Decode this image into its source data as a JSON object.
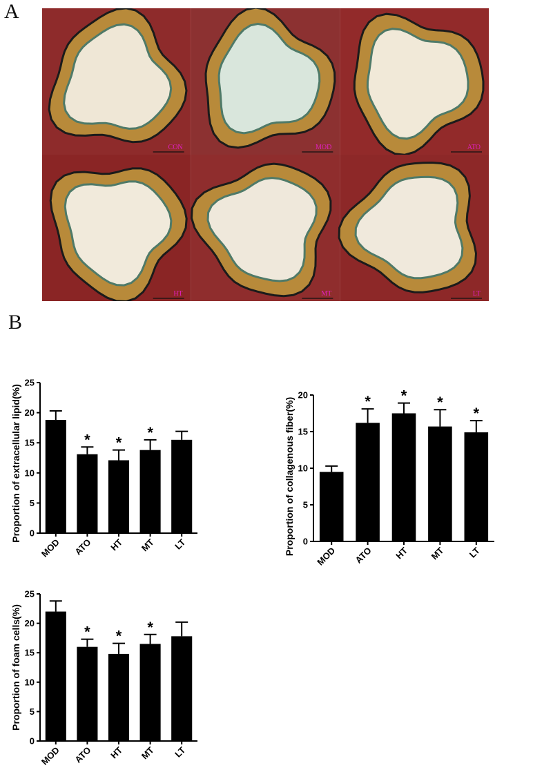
{
  "figure": {
    "panel_a_letter": "A",
    "panel_b_letter": "B"
  },
  "micrographs": [
    {
      "label": "CON",
      "bg": "#efe7d6",
      "tissue": "#8e2b2b"
    },
    {
      "label": "MOD",
      "bg": "#d9e6dc",
      "tissue": "#8c3131"
    },
    {
      "label": "ATO",
      "bg": "#f1e9d8",
      "tissue": "#922a2a"
    },
    {
      "label": "HT",
      "bg": "#f1eadb",
      "tissue": "#8a2525"
    },
    {
      "label": "MT",
      "bg": "#efe8db",
      "tissue": "#8f2d2d"
    },
    {
      "label": "LT",
      "bg": "#f0e9dc",
      "tissue": "#8d2828"
    }
  ],
  "colors": {
    "bar": "#000000",
    "axis": "#000000",
    "micrograph_label": "#e020c0"
  },
  "chart_data": [
    {
      "type": "bar",
      "ylabel": "Proportion of extracellular lipid(%)",
      "categories": [
        "MOD",
        "ATO",
        "HT",
        "MT",
        "LT"
      ],
      "values": [
        18.8,
        13.1,
        12.1,
        13.8,
        15.5
      ],
      "errors": [
        1.5,
        1.2,
        1.7,
        1.7,
        1.4
      ],
      "significant": [
        "",
        "*",
        "*",
        "*",
        ""
      ],
      "ylim": [
        0,
        25
      ],
      "yticks": [
        0,
        5,
        10,
        15,
        20,
        25
      ]
    },
    {
      "type": "bar",
      "ylabel": "Proportion of collagenous fiber(%)",
      "categories": [
        "MOD",
        "ATO",
        "HT",
        "MT",
        "LT"
      ],
      "values": [
        9.5,
        16.2,
        17.5,
        15.7,
        14.9
      ],
      "errors": [
        0.8,
        1.9,
        1.4,
        2.3,
        1.6
      ],
      "significant": [
        "",
        "*",
        "*",
        "*",
        "*"
      ],
      "ylim": [
        0,
        20
      ],
      "yticks": [
        0,
        5,
        10,
        15,
        20
      ]
    },
    {
      "type": "bar",
      "ylabel": "Proportion of foam cells(%)",
      "categories": [
        "MOD",
        "ATO",
        "HT",
        "MT",
        "LT"
      ],
      "values": [
        22.0,
        16.0,
        14.8,
        16.5,
        17.8
      ],
      "errors": [
        1.8,
        1.3,
        1.8,
        1.6,
        2.4
      ],
      "significant": [
        "",
        "*",
        "*",
        "*",
        ""
      ],
      "ylim": [
        0,
        25
      ],
      "yticks": [
        0,
        5,
        10,
        15,
        20,
        25
      ]
    }
  ]
}
